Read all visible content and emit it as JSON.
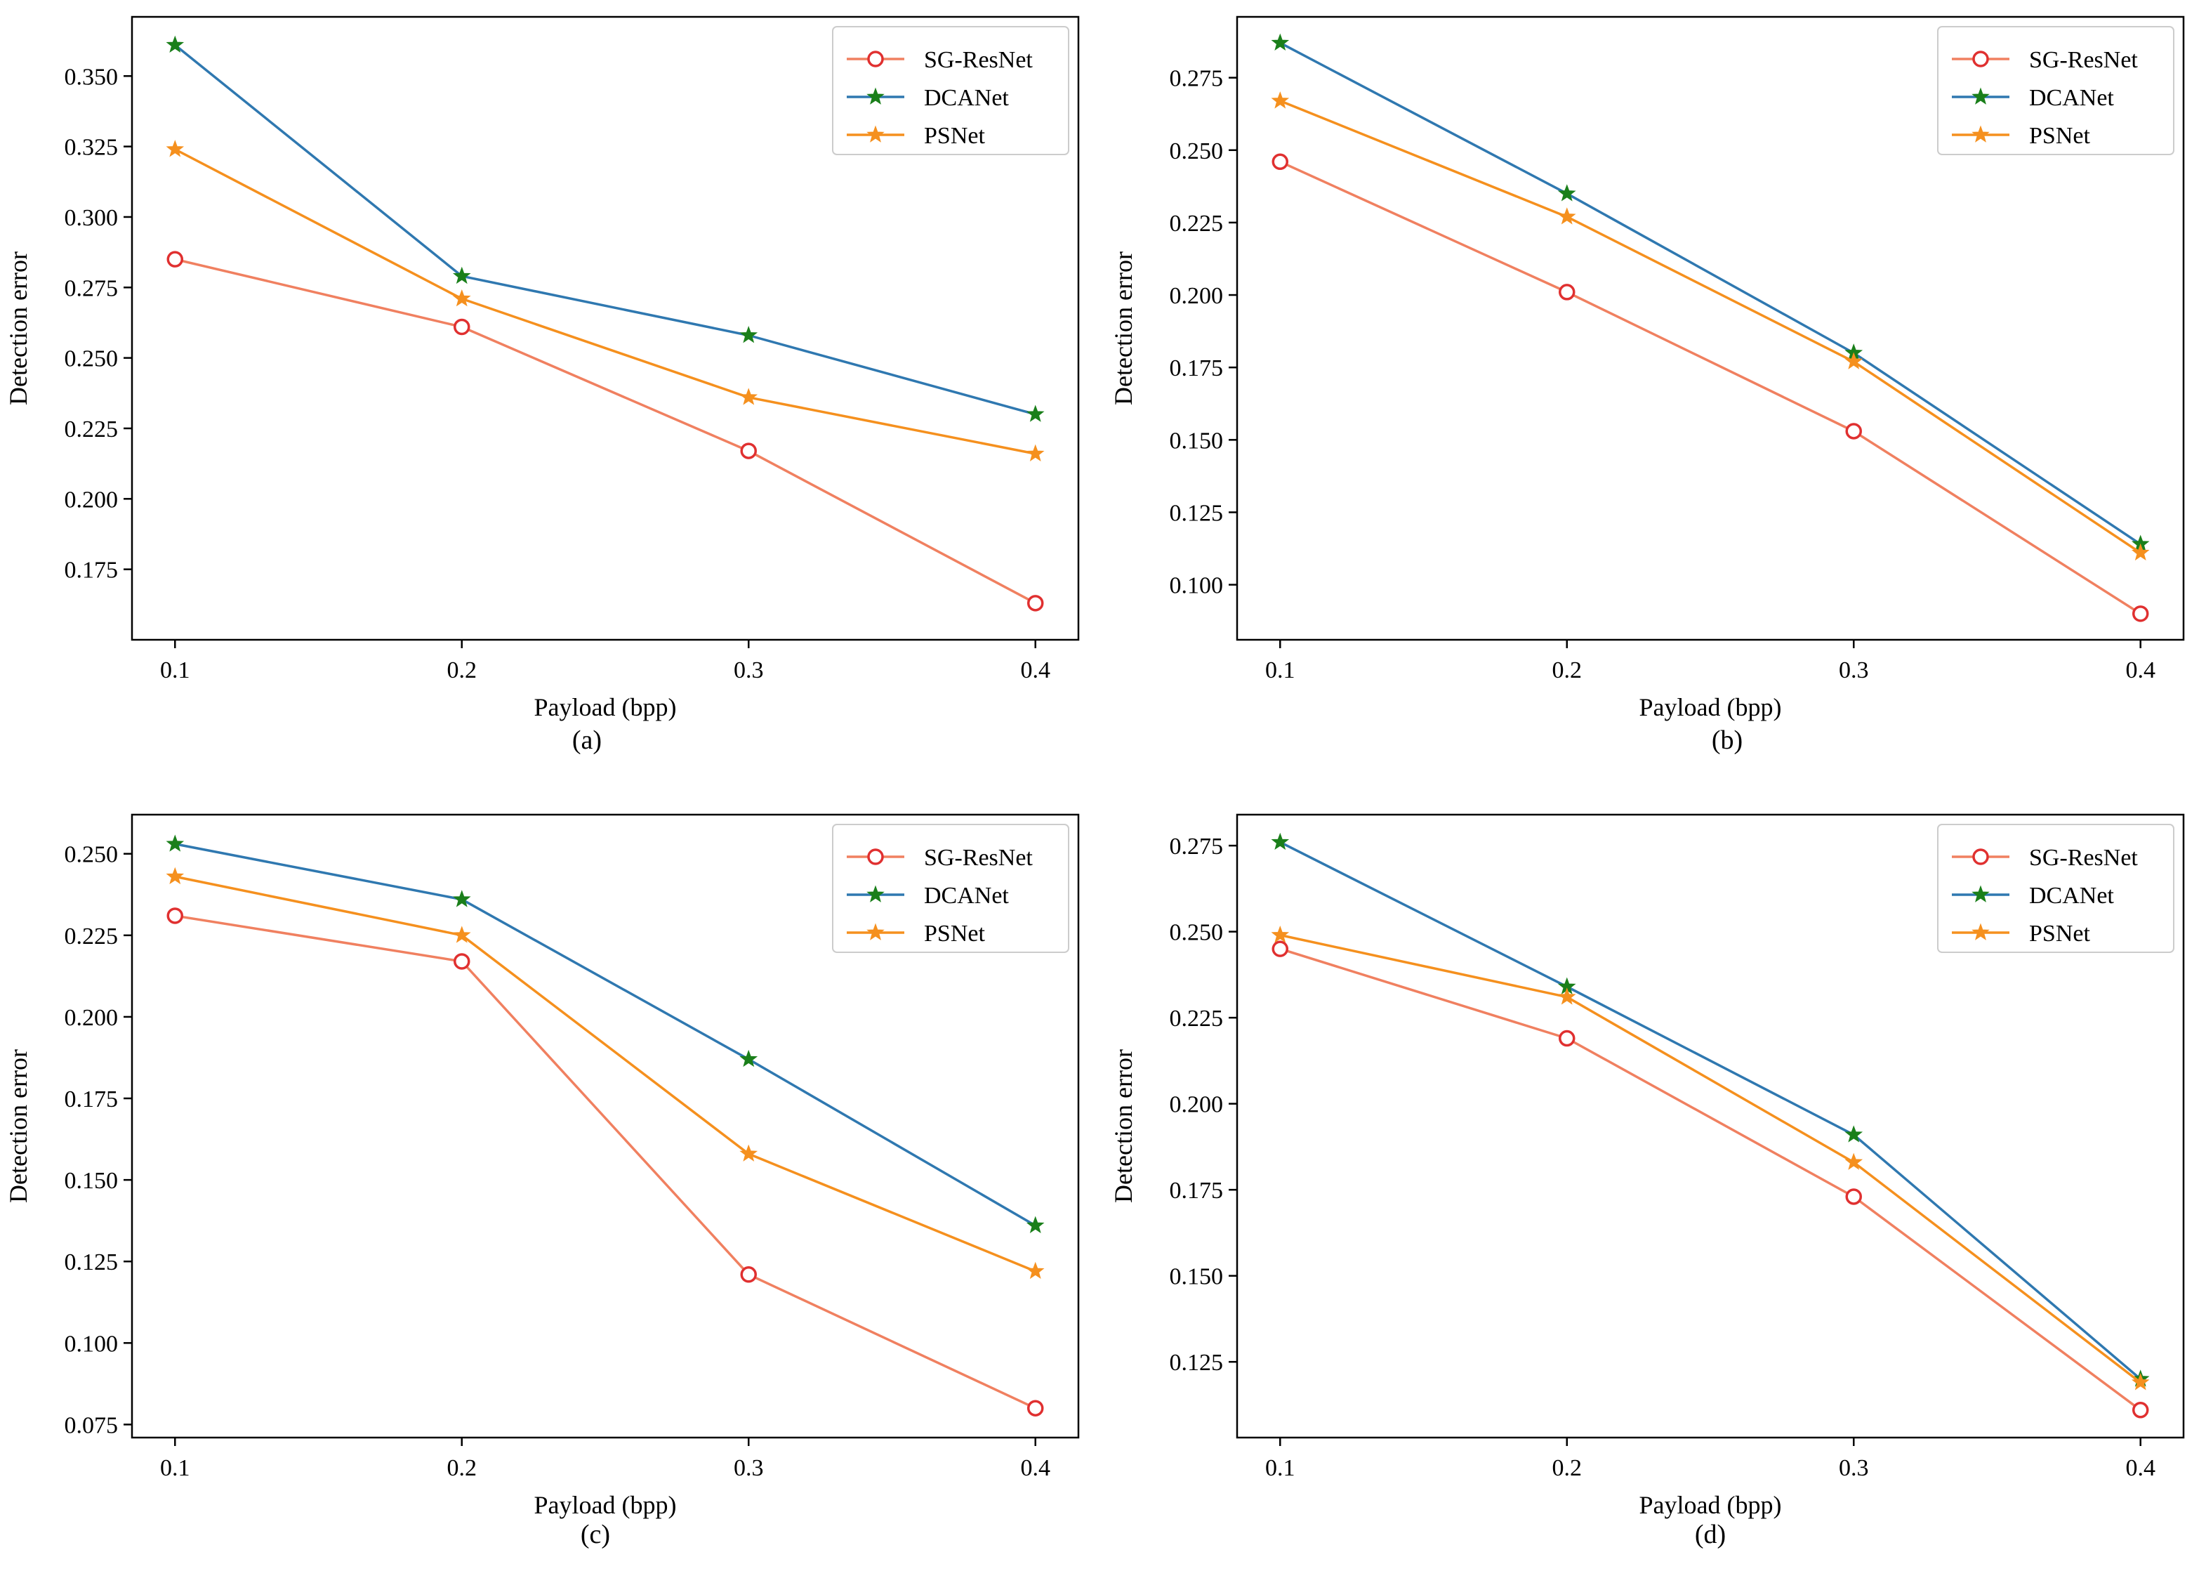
{
  "chart_data": [
    {
      "type": "line",
      "caption": "(a)",
      "xlabel": "Payload (bpp)",
      "ylabel": "Detection error",
      "x": [
        0.1,
        0.2,
        0.3,
        0.4
      ],
      "xticks": [
        "0.1",
        "0.2",
        "0.3",
        "0.4"
      ],
      "xlim": [
        0.085,
        0.415
      ],
      "ylim": [
        0.15,
        0.371
      ],
      "yticks": [
        "0.175",
        "0.200",
        "0.225",
        "0.250",
        "0.275",
        "0.300",
        "0.325",
        "0.350"
      ],
      "legend": "top-right",
      "series": [
        {
          "name": "SG-ResNet",
          "values": [
            0.285,
            0.261,
            0.217,
            0.163
          ],
          "color": "#f08060",
          "marker": "circle",
          "marker_color": "#e03030"
        },
        {
          "name": "DCANet",
          "values": [
            0.361,
            0.279,
            0.258,
            0.23
          ],
          "color": "#2f78b0",
          "marker": "star",
          "marker_color": "#1a7f1a"
        },
        {
          "name": "PSNet",
          "values": [
            0.324,
            0.271,
            0.236,
            0.216
          ],
          "color": "#f5901e",
          "marker": "star",
          "marker_color": "#f5901e"
        }
      ]
    },
    {
      "type": "line",
      "caption": "(b)",
      "xlabel": "Payload (bpp)",
      "ylabel": "Detection error",
      "x": [
        0.1,
        0.2,
        0.3,
        0.4
      ],
      "xticks": [
        "0.1",
        "0.2",
        "0.3",
        "0.4"
      ],
      "xlim": [
        0.085,
        0.415
      ],
      "ylim": [
        0.081,
        0.296
      ],
      "yticks": [
        "0.100",
        "0.125",
        "0.150",
        "0.175",
        "0.200",
        "0.225",
        "0.250",
        "0.275"
      ],
      "legend": "top-right",
      "series": [
        {
          "name": "SG-ResNet",
          "values": [
            0.246,
            0.201,
            0.153,
            0.09
          ],
          "color": "#f08060",
          "marker": "circle",
          "marker_color": "#e03030"
        },
        {
          "name": "DCANet",
          "values": [
            0.287,
            0.235,
            0.18,
            0.114
          ],
          "color": "#2f78b0",
          "marker": "star",
          "marker_color": "#1a7f1a"
        },
        {
          "name": "PSNet",
          "values": [
            0.267,
            0.227,
            0.177,
            0.111
          ],
          "color": "#f5901e",
          "marker": "star",
          "marker_color": "#f5901e"
        }
      ]
    },
    {
      "type": "line",
      "caption": "(c)",
      "xlabel": "Payload (bpp)",
      "ylabel": "Detection error",
      "x": [
        0.1,
        0.2,
        0.3,
        0.4
      ],
      "xticks": [
        "0.1",
        "0.2",
        "0.3",
        "0.4"
      ],
      "xlim": [
        0.085,
        0.415
      ],
      "ylim": [
        0.071,
        0.262
      ],
      "yticks": [
        "0.075",
        "0.100",
        "0.125",
        "0.150",
        "0.175",
        "0.200",
        "0.225",
        "0.250"
      ],
      "legend": "top-right",
      "series": [
        {
          "name": "SG-ResNet",
          "values": [
            0.231,
            0.217,
            0.121,
            0.08
          ],
          "color": "#f08060",
          "marker": "circle",
          "marker_color": "#e03030"
        },
        {
          "name": "DCANet",
          "values": [
            0.253,
            0.236,
            0.187,
            0.136
          ],
          "color": "#2f78b0",
          "marker": "star",
          "marker_color": "#1a7f1a"
        },
        {
          "name": "PSNet",
          "values": [
            0.243,
            0.225,
            0.158,
            0.122
          ],
          "color": "#f5901e",
          "marker": "star",
          "marker_color": "#f5901e"
        }
      ]
    },
    {
      "type": "line",
      "caption": "(d)",
      "xlabel": "Payload (bpp)",
      "ylabel": "Detection error",
      "x": [
        0.1,
        0.2,
        0.3,
        0.4
      ],
      "xticks": [
        "0.1",
        "0.2",
        "0.3",
        "0.4"
      ],
      "xlim": [
        0.085,
        0.415
      ],
      "ylim": [
        0.103,
        0.284
      ],
      "yticks": [
        "0.125",
        "0.150",
        "0.175",
        "0.200",
        "0.225",
        "0.250",
        "0.275"
      ],
      "legend": "top-right",
      "series": [
        {
          "name": "SG-ResNet",
          "values": [
            0.245,
            0.219,
            0.173,
            0.111
          ],
          "color": "#f08060",
          "marker": "circle",
          "marker_color": "#e03030"
        },
        {
          "name": "DCANet",
          "values": [
            0.276,
            0.234,
            0.191,
            0.12
          ],
          "color": "#2f78b0",
          "marker": "star",
          "marker_color": "#1a7f1a"
        },
        {
          "name": "PSNet",
          "values": [
            0.249,
            0.231,
            0.183,
            0.119
          ],
          "color": "#f5901e",
          "marker": "star",
          "marker_color": "#f5901e"
        }
      ]
    }
  ]
}
